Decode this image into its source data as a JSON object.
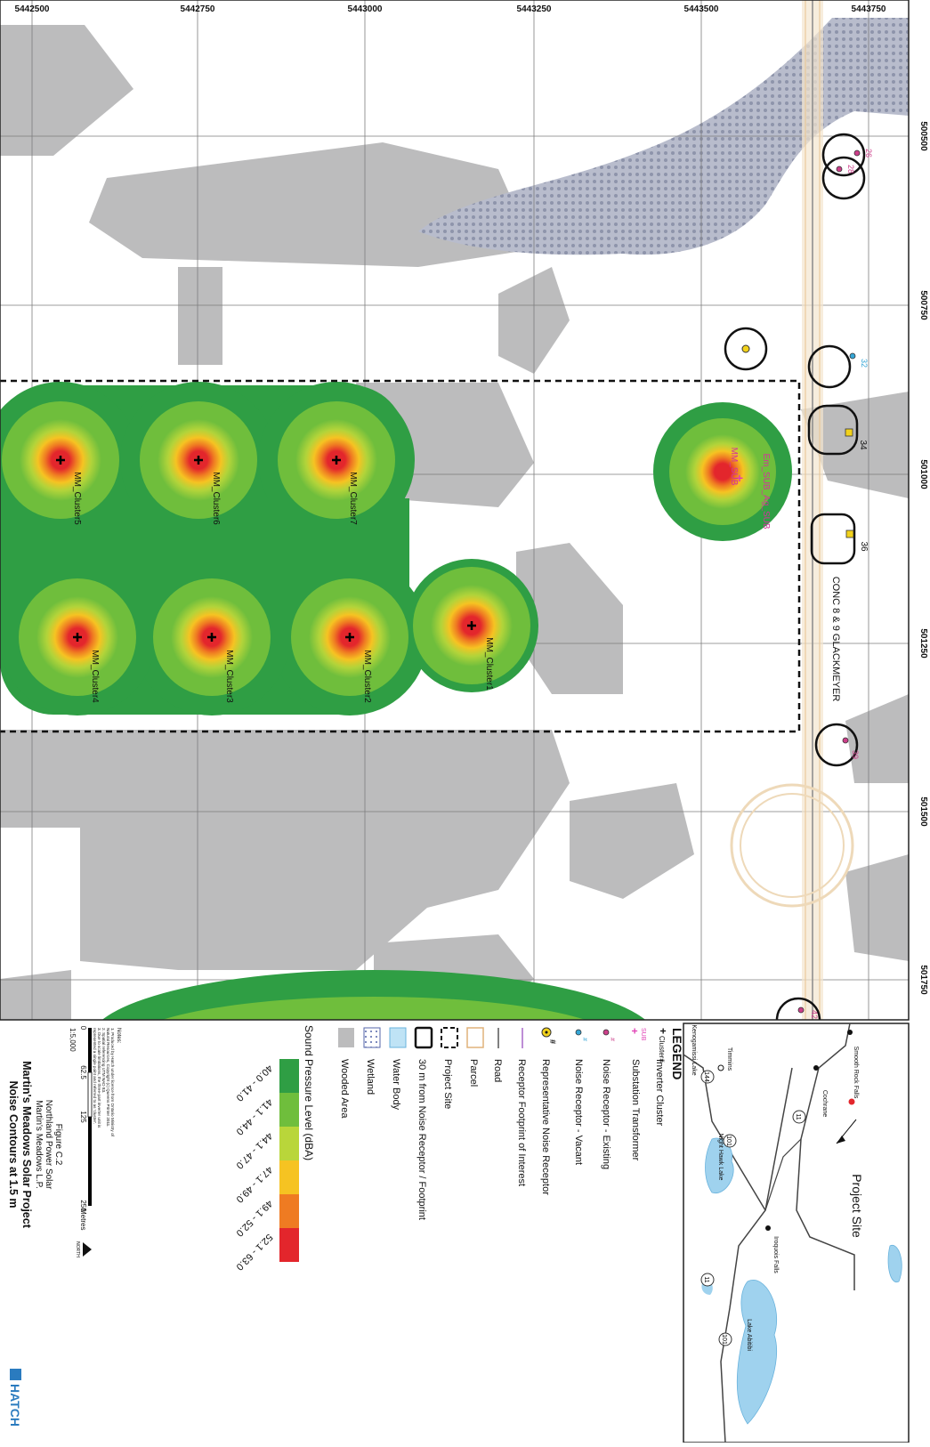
{
  "map": {
    "easting_ticks": [
      "5442500",
      "5442750",
      "5443000",
      "5443250",
      "5443500",
      "5443750"
    ],
    "northing_ticks": [
      "500500",
      "500750",
      "501000",
      "501250",
      "501500",
      "501750"
    ],
    "road_label": "CONC 8 & 9 GLACKMEYER",
    "inverter_clusters": [
      "MM_Cluster1",
      "MM_Cluster2",
      "MM_Cluster3",
      "MM_Cluster4",
      "MM_Cluster5",
      "MM_Cluster6",
      "MM_Cluster7"
    ],
    "substation_labels": [
      "Em_SUB_Ag_SUB",
      "MM_SUB"
    ],
    "receptor_labels": [
      "26",
      "28",
      "32",
      "34",
      "36",
      "39",
      "42"
    ]
  },
  "legend": {
    "title": "LEGEND",
    "items": [
      {
        "symbol_label": "Cluster#",
        "label": "Inverter Cluster"
      },
      {
        "symbol_label": "SUB",
        "label": "Substation Transformer"
      },
      {
        "symbol_label": "#",
        "label": "Noise Receptor - Existing"
      },
      {
        "symbol_label": "#",
        "label": "Noise Receptor - Vacant"
      },
      {
        "symbol_label": "#",
        "label": "Representative Noise Receptor"
      },
      {
        "symbol_label": "",
        "label": "Receptor Footprint of Interest"
      },
      {
        "symbol_label": "",
        "label": "Road"
      },
      {
        "symbol_label": "",
        "label": "Parcel"
      },
      {
        "symbol_label": "",
        "label": "Project Site"
      },
      {
        "symbol_label": "",
        "label": "30 m from Noise Receptor / Footprint"
      },
      {
        "symbol_label": "",
        "label": "Water Body"
      },
      {
        "symbol_label": "",
        "label": "Wetland"
      },
      {
        "symbol_label": "",
        "label": "Wooded Area"
      }
    ],
    "spl_title": "Sound Pressure Level (dBA)",
    "spl_classes": [
      {
        "range": "40.0 - 41.0",
        "color": "#2f9e44"
      },
      {
        "range": "41.1 - 44.0",
        "color": "#6fbe3c"
      },
      {
        "range": "44.1 - 47.0",
        "color": "#b9d63a"
      },
      {
        "range": "47.1 - 49.0",
        "color": "#f6c322"
      },
      {
        "range": "49.1 - 52.0",
        "color": "#ef7b22"
      },
      {
        "range": "52.1 - 63.0",
        "color": "#e3262c"
      }
    ]
  },
  "notes": {
    "title": "Notes:",
    "lines": [
      "1. Produced by Hatch under licence from Ontario Ministry of",
      "Natural Resources, Copyright (c) Queens Printer 2011.",
      "2. Spatial referencing UTM NAD 83.",
      "3. Due to scale limitations, the three-part inverter unit is",
      "represented a single point and referred to as 'cluster'."
    ]
  },
  "scale": {
    "ticks": [
      "0",
      "62.5",
      "125",
      "250"
    ],
    "unit": "Metres",
    "ratio": "1:5,000",
    "north": "NORTH"
  },
  "title_block": {
    "figure": "Figure C.2",
    "company": "Northland Power Solar",
    "partnership": "Martin's Meadows L.P.",
    "project": "Martin's Meadows Solar Project",
    "subtitle": "Noise Contours at 1.5 m",
    "logo": "HATCH"
  },
  "inset": {
    "project_site_label": "Project Site",
    "places": [
      "Smooth Rock Falls",
      "Cochrane",
      "Timmins",
      "Kenogamissi Lake",
      "Night Hawk Lake",
      "Iroquois Falls",
      "Lake Abitibi"
    ],
    "highways": [
      "11",
      "101",
      "144",
      "11",
      "101"
    ]
  },
  "colors": {
    "wooded": "#bcbcbd",
    "wetland": "#a9adc2",
    "grid": "#7d7d7d",
    "receptor_existing": "#cc3f8a",
    "receptor_vacant": "#35a6d6",
    "representative": "#f2d21b",
    "substation": "#e03fb4"
  }
}
